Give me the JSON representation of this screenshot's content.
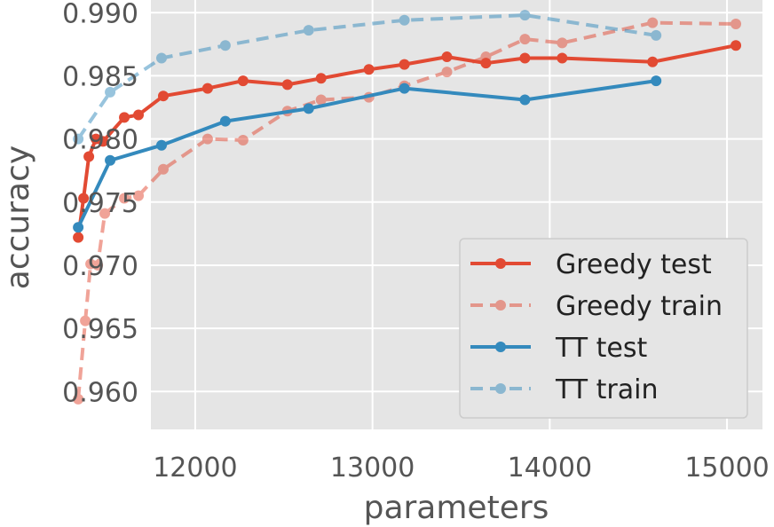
{
  "chart_data": {
    "type": "line",
    "title": "",
    "xlabel": "parameters",
    "ylabel": "accuracy",
    "xlim": [
      11750,
      15200
    ],
    "ylim": [
      0.957,
      0.991
    ],
    "xticks": [
      12000,
      13000,
      14000,
      15000
    ],
    "yticks": [
      0.96,
      0.965,
      0.97,
      0.975,
      0.98,
      0.985,
      0.99
    ],
    "xtick_labels": [
      "12000",
      "13000",
      "14000",
      "15000"
    ],
    "ytick_labels": [
      "0.960",
      "0.965",
      "0.970",
      "0.975",
      "0.980",
      "0.985",
      "0.990"
    ],
    "grid": true,
    "legend_position": "lower-right",
    "series": [
      {
        "name": "Greedy test",
        "color": "#e24a33",
        "style": "solid",
        "alpha": 1.0,
        "x": [
          11340,
          11370,
          11400,
          11440,
          11480,
          11600,
          11680,
          11820,
          12070,
          12270,
          12520,
          12710,
          12980,
          13180,
          13420,
          13640,
          13860,
          14070,
          14580,
          15050
        ],
        "y": [
          0.9722,
          0.9753,
          0.9786,
          0.98,
          0.9798,
          0.9817,
          0.9819,
          0.9834,
          0.984,
          0.9846,
          0.9843,
          0.9848,
          0.9855,
          0.9859,
          0.9865,
          0.986,
          0.9864,
          0.9864,
          0.9861,
          0.9874
        ]
      },
      {
        "name": "Greedy train",
        "color": "#e24a33",
        "style": "dashed",
        "alpha": 0.5,
        "x": [
          11340,
          11380,
          11410,
          11450,
          11490,
          11600,
          11680,
          11820,
          12070,
          12270,
          12520,
          12710,
          12980,
          13180,
          13420,
          13640,
          13860,
          14070,
          14580,
          15050
        ],
        "y": [
          0.9594,
          0.9656,
          0.9701,
          0.97,
          0.9741,
          0.9753,
          0.9755,
          0.9776,
          0.98,
          0.9799,
          0.9822,
          0.9831,
          0.9833,
          0.9842,
          0.9853,
          0.9865,
          0.9879,
          0.9876,
          0.9892,
          0.9891
        ]
      },
      {
        "name": "TT test",
        "color": "#348abd",
        "style": "solid",
        "alpha": 1.0,
        "x": [
          11340,
          11520,
          11810,
          12170,
          12640,
          13180,
          13860,
          14600
        ],
        "y": [
          0.973,
          0.9783,
          0.9795,
          0.9814,
          0.9824,
          0.984,
          0.9831,
          0.9846
        ]
      },
      {
        "name": "TT train",
        "color": "#348abd",
        "style": "dashed",
        "alpha": 0.5,
        "x": [
          11340,
          11520,
          11810,
          12170,
          12640,
          13180,
          13860,
          14600
        ],
        "y": [
          0.98,
          0.9837,
          0.9864,
          0.9874,
          0.9886,
          0.9894,
          0.9898,
          0.9882
        ]
      }
    ]
  }
}
